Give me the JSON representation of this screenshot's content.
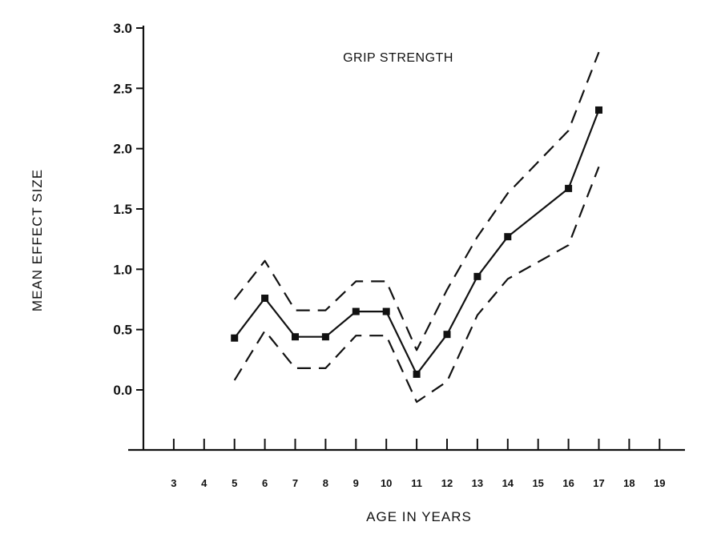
{
  "chart_data": {
    "type": "line",
    "title": "GRIP STRENGTH",
    "xlabel": "AGE IN YEARS",
    "ylabel": "MEAN EFFECT SIZE",
    "x_ticks": [
      3,
      4,
      5,
      6,
      7,
      8,
      9,
      10,
      11,
      12,
      13,
      14,
      15,
      16,
      17,
      18,
      19
    ],
    "y_ticks": [
      "3.0",
      "2.5",
      "2.0",
      "1.5",
      "1.0",
      "0.5",
      "0.0"
    ],
    "y_tick_values": [
      3.0,
      2.5,
      2.0,
      1.5,
      1.0,
      0.5,
      0.0
    ],
    "xlim": [
      2,
      19
    ],
    "ylim": [
      -0.5,
      3.0
    ],
    "grid": false,
    "series": [
      {
        "style": "solid-with-markers",
        "x": [
          5,
          6,
          7,
          8,
          9,
          10,
          11,
          12,
          13,
          14,
          16,
          17
        ],
        "values": [
          0.43,
          0.76,
          0.44,
          0.44,
          0.65,
          0.65,
          0.13,
          0.46,
          0.94,
          1.27,
          1.67,
          2.32
        ]
      },
      {
        "style": "dashed",
        "x": [
          5,
          6,
          7,
          8,
          9,
          10,
          11,
          12,
          13,
          14,
          16,
          17
        ],
        "values": [
          0.75,
          1.07,
          0.66,
          0.66,
          0.9,
          0.9,
          0.33,
          0.83,
          1.27,
          1.63,
          2.15,
          2.8
        ]
      },
      {
        "style": "dashed",
        "x": [
          5,
          6,
          7,
          8,
          9,
          10,
          11,
          12,
          13,
          14,
          16,
          17
        ],
        "values": [
          0.08,
          0.49,
          0.18,
          0.18,
          0.45,
          0.45,
          -0.1,
          0.07,
          0.62,
          0.92,
          1.2,
          1.85
        ]
      }
    ]
  }
}
